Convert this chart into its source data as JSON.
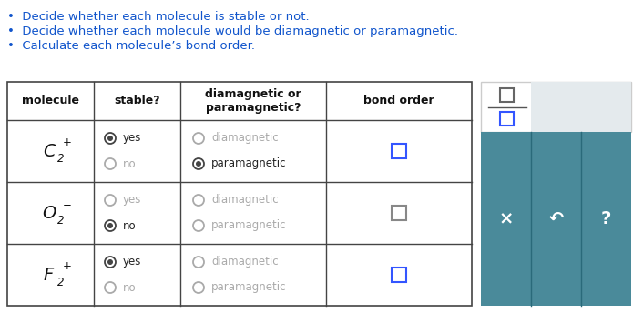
{
  "title_bullets": [
    "Decide whether each molecule is stable or not.",
    "Decide whether each molecule would be diamagnetic or paramagnetic.",
    "Calculate each molecule’s bond order."
  ],
  "bullet_color": "#1155cc",
  "bullet_fontsize": 9.5,
  "table_header": [
    "molecule",
    "stable?",
    "diamagnetic or\nparamagnetic?",
    "bond order"
  ],
  "molecule_labels": [
    {
      "base": "C",
      "sub": "2",
      "sup": "+"
    },
    {
      "base": "O",
      "sub": "2",
      "sup": "−"
    },
    {
      "base": "F",
      "sub": "2",
      "sup": "+"
    }
  ],
  "rows": [
    {
      "yes_filled": true,
      "no_filled": false,
      "diamag_filled": false,
      "paramag_filled": true,
      "yes_tc": "#222222",
      "no_tc": "#aaaaaa",
      "d_tc": "#aaaaaa",
      "p_tc": "#222222",
      "checkbox_color": "#3355ff"
    },
    {
      "yes_filled": false,
      "no_filled": true,
      "diamag_filled": false,
      "paramag_filled": false,
      "yes_tc": "#aaaaaa",
      "no_tc": "#222222",
      "d_tc": "#aaaaaa",
      "p_tc": "#aaaaaa",
      "checkbox_color": "#888888"
    },
    {
      "yes_filled": true,
      "no_filled": false,
      "diamag_filled": false,
      "paramag_filled": false,
      "yes_tc": "#222222",
      "no_tc": "#aaaaaa",
      "d_tc": "#aaaaaa",
      "p_tc": "#aaaaaa",
      "checkbox_color": "#3355ff"
    }
  ],
  "sidebar_bg": "#e4eaed",
  "sidebar_button_bg": "#4a8a9a",
  "sidebar_button_symbols": [
    "×",
    "↶",
    "?"
  ],
  "figsize": [
    6.95,
    3.44
  ],
  "dpi": 100
}
